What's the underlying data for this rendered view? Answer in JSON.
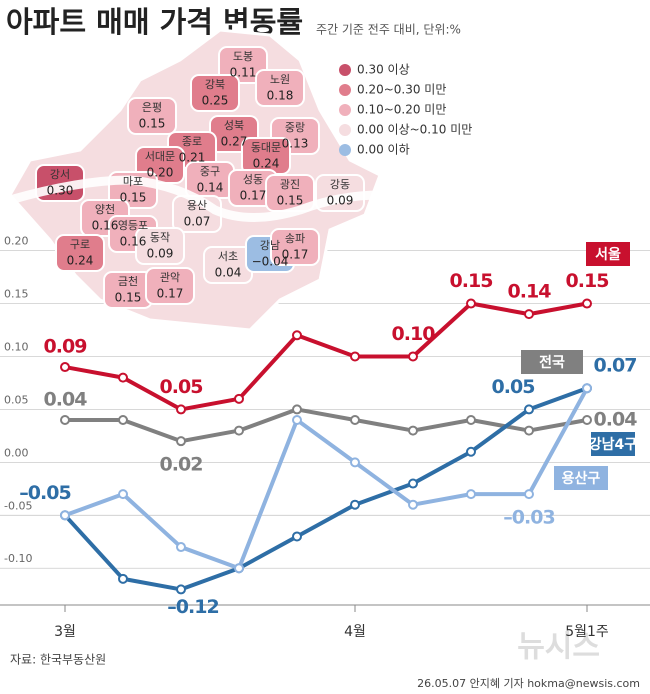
{
  "title": "아파트 매매 가격 변동률",
  "subtitle": "주간 기준 전주 대비, 단위:%",
  "source": "자료: 한국부동산원",
  "credit": "26.05.07 안지혜 기자  hokma@newsis.com",
  "watermark": "뉴시스",
  "chart_data": [
    {
      "type": "line",
      "categories": [
        "3월",
        null,
        null,
        null,
        null,
        "4월",
        null,
        null,
        null,
        "5월1주"
      ],
      "ylim": [
        -0.13,
        0.21
      ],
      "yticks": [
        {
          "value": 0.2,
          "label": "0.20"
        },
        {
          "value": 0.15,
          "label": "0.15"
        },
        {
          "value": 0.1,
          "label": "0.10"
        },
        {
          "value": 0.05,
          "label": "0.05"
        },
        {
          "value": 0,
          "label": "0.00"
        },
        {
          "value": -0.05,
          "label": "-0.05"
        },
        {
          "value": -0.1,
          "label": "-0.10"
        }
      ],
      "grid": true,
      "series": [
        {
          "name": "서울",
          "color": "#c8102e",
          "values": [
            0.09,
            0.08,
            0.05,
            0.06,
            0.12,
            0.1,
            0.1,
            0.15,
            0.14,
            0.15
          ],
          "value_labels": [
            "0.09",
            null,
            "0.05",
            null,
            null,
            null,
            "0.10",
            "0.15",
            "0.14",
            "0.15"
          ]
        },
        {
          "name": "전국",
          "color": "#808080",
          "values": [
            0.04,
            0.04,
            0.02,
            0.03,
            0.05,
            0.04,
            0.03,
            0.04,
            0.03,
            0.04
          ],
          "value_labels": [
            "0.04",
            null,
            "0.02",
            null,
            null,
            null,
            null,
            null,
            null,
            "0.04"
          ]
        },
        {
          "name": "강남4구",
          "color": "#2e6ea6",
          "values": [
            -0.05,
            -0.11,
            -0.12,
            -0.1,
            -0.07,
            -0.04,
            -0.02,
            0.01,
            0.05,
            0.07
          ],
          "value_labels": [
            "–0.05",
            null,
            "–0.12",
            null,
            null,
            null,
            null,
            null,
            "0.05",
            "0.07"
          ]
        },
        {
          "name": "용산구",
          "color": "#8fb3e0",
          "values": [
            -0.05,
            -0.03,
            -0.08,
            -0.1,
            0.04,
            0.0,
            -0.04,
            -0.03,
            -0.03,
            0.07
          ],
          "value_labels": [
            null,
            null,
            null,
            null,
            null,
            null,
            null,
            null,
            "–0.03",
            null
          ]
        }
      ]
    },
    {
      "type": "map",
      "categories": [
        "도봉",
        "노원",
        "강북",
        "은평",
        "중랑",
        "성북",
        "종로",
        "동대문",
        "서대문",
        "마포",
        "중구",
        "성동",
        "광진",
        "강동",
        "강서",
        "양천",
        "영등포",
        "용산",
        "동작",
        "구로",
        "서초",
        "강남",
        "송파",
        "금천",
        "관악"
      ],
      "values": [
        0.11,
        0.18,
        0.25,
        0.15,
        0.13,
        0.27,
        0.21,
        0.24,
        0.2,
        0.15,
        0.14,
        0.17,
        0.15,
        0.09,
        0.3,
        0.16,
        0.16,
        0.07,
        0.09,
        0.24,
        0.04,
        -0.04,
        0.17,
        0.15,
        0.17
      ],
      "value_labels": [
        "0.11",
        "0.18",
        "0.25",
        "0.15",
        "0.13",
        "0.27",
        "0.21",
        "0.24",
        "0.20",
        "0.15",
        "0.14",
        "0.17",
        "0.15",
        "0.09",
        "0.30",
        "0.16",
        "0.16",
        "0.07",
        "0.09",
        "0.24",
        "0.04",
        "−0.04",
        "0.17",
        "0.15",
        "0.17"
      ],
      "colors": [
        "#f0b0bb",
        "#f0b0bb",
        "#e07d8c",
        "#f0b0bb",
        "#f0b0bb",
        "#e07d8c",
        "#e07d8c",
        "#e07d8c",
        "#e07d8c",
        "#f0b0bb",
        "#f0b0bb",
        "#f0b0bb",
        "#f0b0bb",
        "#f5dde0",
        "#c8506a",
        "#f0b0bb",
        "#f0b0bb",
        "#f5dde0",
        "#f5dde0",
        "#e07d8c",
        "#f5dde0",
        "#9cbde3",
        "#f0b0bb",
        "#f0b0bb",
        "#f0b0bb"
      ],
      "legend": [
        {
          "label": "0.30 이상",
          "color": "#c8506a"
        },
        {
          "label": "0.20~0.30 미만",
          "color": "#e07d8c"
        },
        {
          "label": "0.10~0.20 미만",
          "color": "#f0b0bb"
        },
        {
          "label": "0.00 이상~0.10 미만",
          "color": "#f5dde0"
        },
        {
          "label": "0.00 이하",
          "color": "#9cbde3"
        }
      ]
    }
  ]
}
